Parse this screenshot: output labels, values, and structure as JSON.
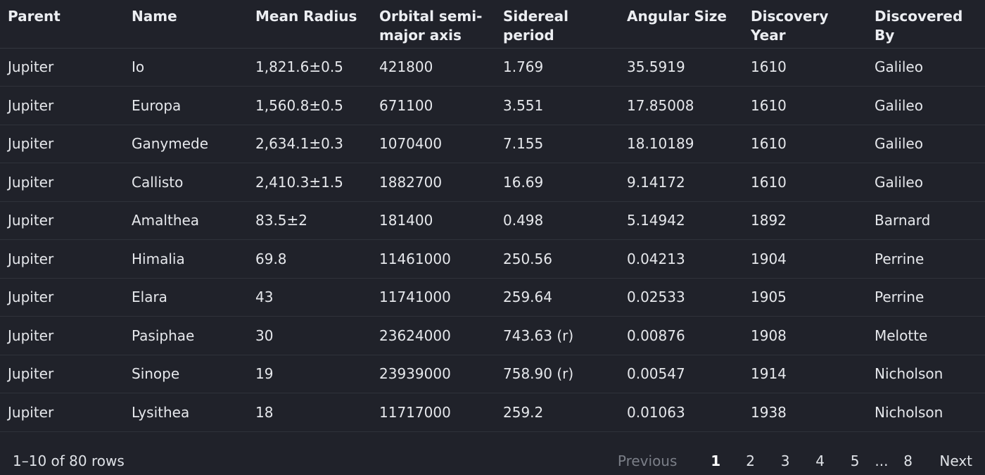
{
  "table": {
    "columns": [
      "Parent",
      "Name",
      "Mean Radius",
      "Orbital semi-major axis",
      "Sidereal period",
      "Angular Size",
      "Discovery Year",
      "Discovered By"
    ],
    "rows": [
      [
        "Jupiter",
        "Io",
        "1,821.6±0.5",
        "421800",
        "1.769",
        "35.5919",
        "1610",
        "Galileo"
      ],
      [
        "Jupiter",
        "Europa",
        "1,560.8±0.5",
        "671100",
        "3.551",
        "17.85008",
        "1610",
        "Galileo"
      ],
      [
        "Jupiter",
        "Ganymede",
        "2,634.1±0.3",
        "1070400",
        "7.155",
        "18.10189",
        "1610",
        "Galileo"
      ],
      [
        "Jupiter",
        "Callisto",
        "2,410.3±1.5",
        "1882700",
        "16.69",
        "9.14172",
        "1610",
        "Galileo"
      ],
      [
        "Jupiter",
        "Amalthea",
        "83.5±2",
        "181400",
        "0.498",
        "5.14942",
        "1892",
        "Barnard"
      ],
      [
        "Jupiter",
        "Himalia",
        "69.8",
        "11461000",
        "250.56",
        "0.04213",
        "1904",
        "Perrine"
      ],
      [
        "Jupiter",
        "Elara",
        "43",
        "11741000",
        "259.64",
        "0.02533",
        "1905",
        "Perrine"
      ],
      [
        "Jupiter",
        "Pasiphae",
        "30",
        "23624000",
        "743.63 (r)",
        "0.00876",
        "1908",
        "Melotte"
      ],
      [
        "Jupiter",
        "Sinope",
        "19",
        "23939000",
        "758.90 (r)",
        "0.00547",
        "1914",
        "Nicholson"
      ],
      [
        "Jupiter",
        "Lysithea",
        "18",
        "11717000",
        "259.2",
        "0.01063",
        "1938",
        "Nicholson"
      ]
    ]
  },
  "footer": {
    "row_count": "1–10 of 80 rows"
  },
  "pagination": {
    "previous": "Previous",
    "pages": [
      "1",
      "2",
      "3",
      "4",
      "5"
    ],
    "ellipsis": "...",
    "last_page": "8",
    "next": "Next",
    "current": "1"
  },
  "colors": {
    "background": "#20222a",
    "text": "#e6e8ec",
    "muted": "#7b7f88",
    "divider": "#2f323a"
  }
}
